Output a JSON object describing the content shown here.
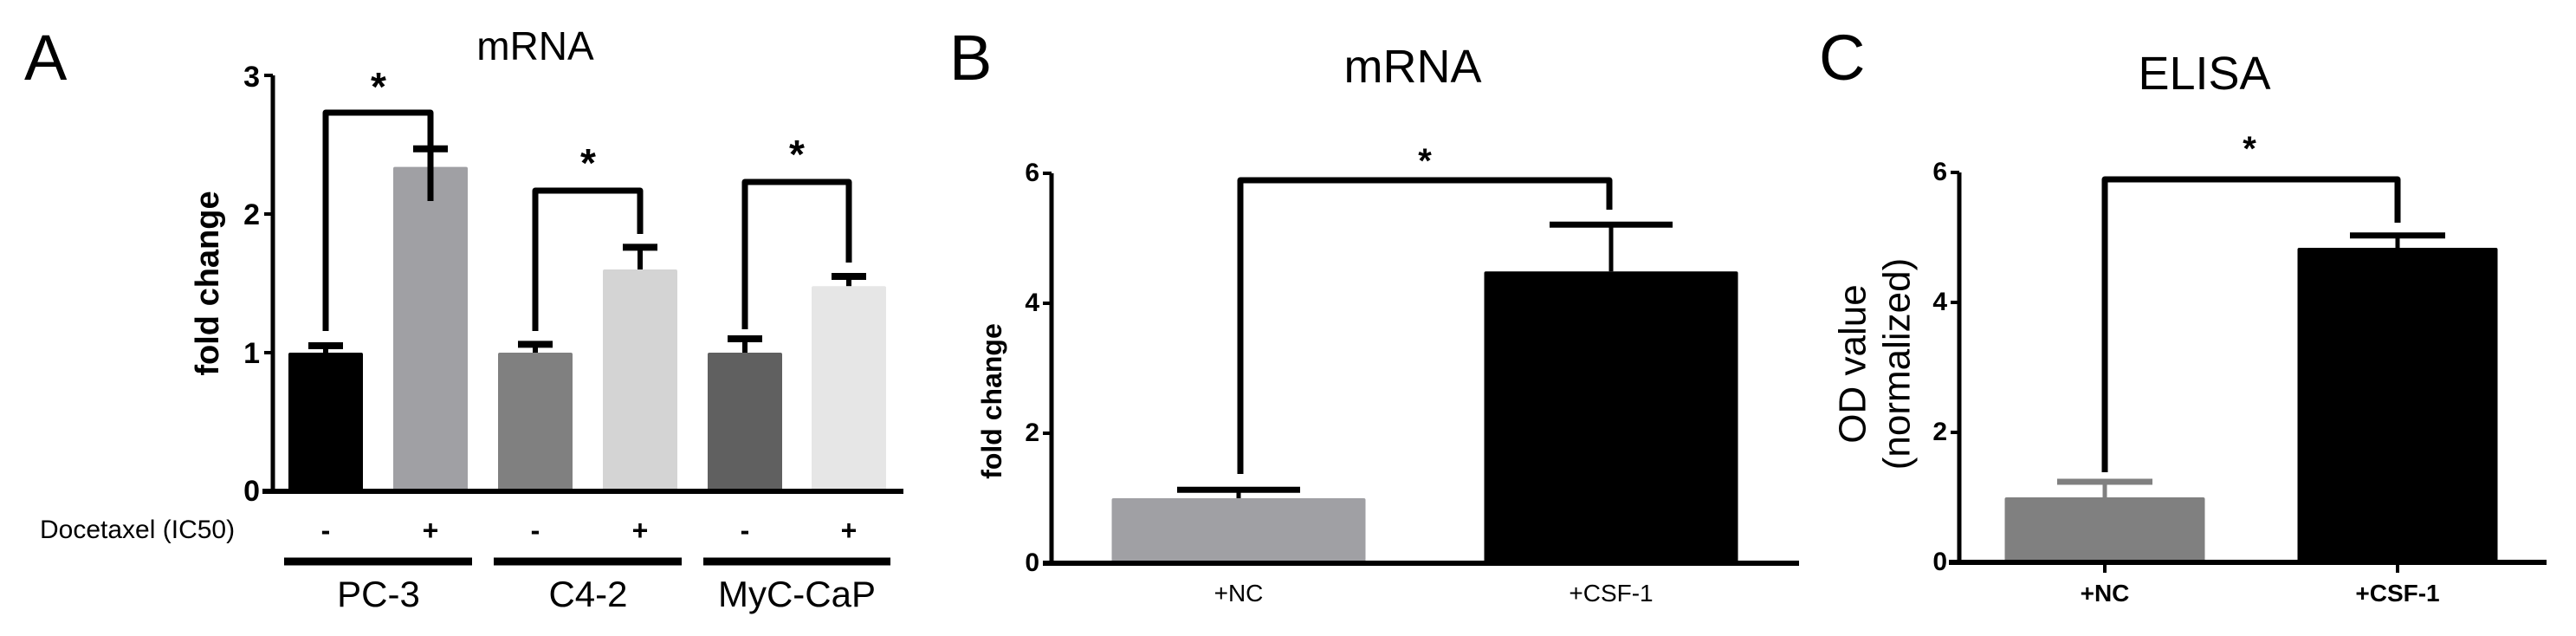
{
  "panels": [
    {
      "letter": "A",
      "title": "mRNA"
    },
    {
      "letter": "B",
      "title": "mRNA"
    },
    {
      "letter": "C",
      "title": "ELISA"
    }
  ],
  "chart_data": [
    {
      "panel": "A",
      "type": "bar",
      "title": "mRNA",
      "xlabel": "",
      "ylabel": "fold change",
      "ylim": [
        0,
        3
      ],
      "yticks": [
        0,
        1,
        2,
        3
      ],
      "grid": false,
      "row_label": "Docetaxel (IC50)",
      "treatment_marks": [
        "-",
        "+",
        "-",
        "+",
        "-",
        "+"
      ],
      "groups": [
        "PC-3",
        "C4-2",
        "MyC-CaP"
      ],
      "categories": [
        "PC-3 -",
        "PC-3 +",
        "C4-2 -",
        "C4-2 +",
        "MyC-CaP -",
        "MyC-CaP +"
      ],
      "values": [
        1.0,
        2.34,
        1.0,
        1.6,
        1.0,
        1.48
      ],
      "errors": [
        0.05,
        0.13,
        0.06,
        0.16,
        0.1,
        0.07
      ],
      "colors": [
        "#000000",
        "#a0a0a4",
        "#808080",
        "#d4d4d4",
        "#606060",
        "#e6e6e6"
      ],
      "significance": [
        {
          "pair": [
            "PC-3 -",
            "PC-3 +"
          ],
          "label": "*"
        },
        {
          "pair": [
            "C4-2 -",
            "C4-2 +"
          ],
          "label": "*"
        },
        {
          "pair": [
            "MyC-CaP -",
            "MyC-CaP +"
          ],
          "label": "*"
        }
      ]
    },
    {
      "panel": "B",
      "type": "bar",
      "title": "mRNA",
      "xlabel": "",
      "ylabel": "fold change",
      "ylim": [
        0,
        6
      ],
      "yticks": [
        0,
        2,
        4,
        6
      ],
      "grid": false,
      "categories": [
        "+NC",
        "+CSF-1"
      ],
      "values": [
        1.0,
        4.49
      ],
      "errors": [
        0.13,
        0.72
      ],
      "colors": [
        "#a0a0a4",
        "#000000"
      ],
      "significance": [
        {
          "pair": [
            "+NC",
            "+CSF-1"
          ],
          "label": "*"
        }
      ]
    },
    {
      "panel": "C",
      "type": "bar",
      "title": "ELISA",
      "xlabel": "",
      "ylabel": "OD value (normalized)",
      "ylabel_lines": [
        "OD value",
        "(normalized)"
      ],
      "ylim": [
        0,
        6
      ],
      "yticks": [
        0,
        2,
        4,
        6
      ],
      "grid": false,
      "categories": [
        "+NC",
        "+CSF-1"
      ],
      "values": [
        1.0,
        4.84
      ],
      "errors": [
        0.24,
        0.19
      ],
      "colors": [
        "#808080",
        "#000000"
      ],
      "significance": [
        {
          "pair": [
            "+NC",
            "+CSF-1"
          ],
          "label": "*"
        }
      ]
    }
  ]
}
